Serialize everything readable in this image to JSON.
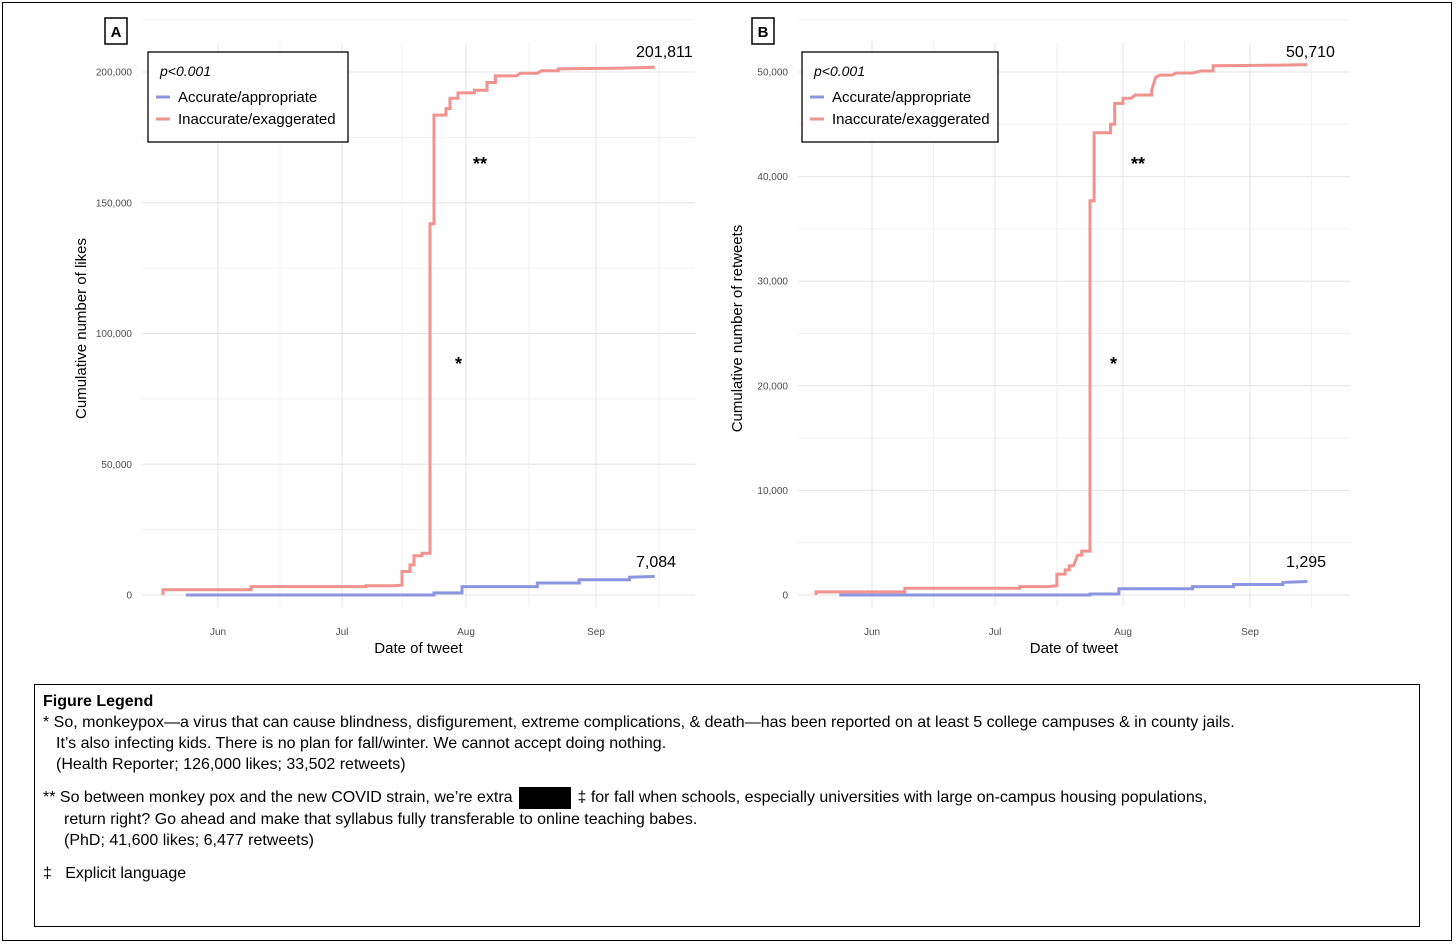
{
  "chart_data": [
    {
      "type": "line",
      "panel": "A",
      "xlabel": "Date of tweet",
      "ylabel": "Cumulative number of likes",
      "x_ticks": [
        "Jun",
        "Jul",
        "Aug",
        "Sep"
      ],
      "y_ticks": [
        "0",
        "50,000",
        "100,000",
        "150,000",
        "200,000"
      ],
      "ylim": [
        0,
        210000
      ],
      "xlim_days": [
        0,
        122
      ],
      "p_value": "p<0.001",
      "series": [
        {
          "name": "Accurate/appropriate",
          "color": "#8c96e0",
          "points": [
            [
              5,
              0
            ],
            [
              65,
              0
            ],
            [
              65,
              800
            ],
            [
              72,
              800
            ],
            [
              72,
              3200
            ],
            [
              90,
              3200
            ],
            [
              90,
              4600
            ],
            [
              100,
              4600
            ],
            [
              100,
              5800
            ],
            [
              112,
              5800
            ],
            [
              112,
              6800
            ],
            [
              118,
              7084
            ]
          ]
        },
        {
          "name": "Inaccurate/exaggerated",
          "color": "#f0928d",
          "points": [
            [
              0,
              0
            ],
            [
              0,
              2000
            ],
            [
              20,
              2000
            ],
            [
              20,
              3200
            ],
            [
              48,
              3200
            ],
            [
              48,
              3500
            ],
            [
              55,
              3500
            ],
            [
              57,
              3800
            ],
            [
              57,
              9000
            ],
            [
              59,
              9000
            ],
            [
              59,
              11500
            ],
            [
              60,
              11500
            ],
            [
              60,
              15000
            ],
            [
              62,
              15000
            ],
            [
              62,
              16000
            ],
            [
              64,
              16000
            ],
            [
              64,
              142000
            ],
            [
              65,
              142000
            ],
            [
              65,
              183500
            ],
            [
              68,
              183500
            ],
            [
              68,
              186000
            ],
            [
              69,
              186000
            ],
            [
              69,
              190000
            ],
            [
              71,
              190000
            ],
            [
              71,
              192000
            ],
            [
              75,
              192000
            ],
            [
              75,
              193000
            ],
            [
              78,
              193000
            ],
            [
              78,
              196000
            ],
            [
              80,
              196000
            ],
            [
              80,
              198500
            ],
            [
              85,
              198500
            ],
            [
              86,
              199500
            ],
            [
              90,
              199500
            ],
            [
              91,
              200500
            ],
            [
              95,
              200500
            ],
            [
              95,
              201200
            ],
            [
              110,
              201500
            ],
            [
              118,
              201811
            ]
          ]
        }
      ],
      "end_labels": [
        "201,811",
        "7,084"
      ],
      "annotations": [
        "*",
        "**"
      ]
    },
    {
      "type": "line",
      "panel": "B",
      "xlabel": "Date of tweet",
      "ylabel": "Cumulative number of retweets",
      "x_ticks": [
        "Jun",
        "Jul",
        "Aug",
        "Sep"
      ],
      "y_ticks": [
        "0",
        "10,000",
        "20,000",
        "30,000",
        "40,000",
        "50,000"
      ],
      "ylim": [
        0,
        52500
      ],
      "xlim_days": [
        0,
        122
      ],
      "p_value": "p<0.001",
      "series": [
        {
          "name": "Accurate/appropriate",
          "color": "#8c96e0",
          "points": [
            [
              5,
              0
            ],
            [
              65,
              0
            ],
            [
              65,
              100
            ],
            [
              72,
              100
            ],
            [
              72,
              600
            ],
            [
              90,
              600
            ],
            [
              90,
              800
            ],
            [
              100,
              800
            ],
            [
              100,
              1000
            ],
            [
              112,
              1000
            ],
            [
              112,
              1200
            ],
            [
              118,
              1295
            ]
          ]
        },
        {
          "name": "Inaccurate/exaggerated",
          "color": "#f0928d",
          "points": [
            [
              0,
              0
            ],
            [
              0,
              300
            ],
            [
              20,
              300
            ],
            [
              20,
              650
            ],
            [
              48,
              650
            ],
            [
              48,
              800
            ],
            [
              55,
              800
            ],
            [
              57,
              900
            ],
            [
              57,
              2000
            ],
            [
              59,
              2000
            ],
            [
              59,
              2400
            ],
            [
              60,
              2400
            ],
            [
              60,
              2800
            ],
            [
              61,
              2800
            ],
            [
              62,
              3800
            ],
            [
              63,
              3800
            ],
            [
              63,
              4200
            ],
            [
              65,
              4200
            ],
            [
              65,
              37700
            ],
            [
              66,
              37700
            ],
            [
              66,
              44200
            ],
            [
              70,
              44200
            ],
            [
              70,
              45000
            ],
            [
              71,
              45000
            ],
            [
              71,
              47000
            ],
            [
              73,
              47000
            ],
            [
              73,
              47500
            ],
            [
              75,
              47500
            ],
            [
              76,
              47800
            ],
            [
              80,
              47800
            ],
            [
              80,
              48300
            ],
            [
              81,
              49500
            ],
            [
              82,
              49700
            ],
            [
              85,
              49700
            ],
            [
              86,
              49900
            ],
            [
              90,
              49900
            ],
            [
              92,
              50100
            ],
            [
              95,
              50100
            ],
            [
              95,
              50600
            ],
            [
              110,
              50650
            ],
            [
              118,
              50710
            ]
          ]
        }
      ],
      "end_labels": [
        "50,710",
        "1,295"
      ],
      "annotations": [
        "*",
        "**"
      ]
    }
  ],
  "legend": {
    "title": "Figure Legend",
    "fn1_line1": "* So, monkeypox—a virus that can cause blindness, disfigurement, extreme complications, & death—has been reported on at least 5 college campuses & in county jails.",
    "fn1_line2": "It’s also infecting kids. There is no plan for fall/winter. We cannot accept doing nothing.",
    "fn1_line3": "(Health Reporter; 126,000 likes; 33,502 retweets)",
    "fn2_line1a": "** So between monkey pox and the new COVID strain, we’re extra",
    "fn2_line1b": "‡ for fall when schools, especially universities with large on-campus housing populations,",
    "fn2_line2": "return right? Go ahead and make that syllabus fully transferable to online teaching babes.",
    "fn2_line3": "(PhD; 41,600 likes; 6,477 retweets)",
    "fn3": "‡   Explicit language"
  }
}
